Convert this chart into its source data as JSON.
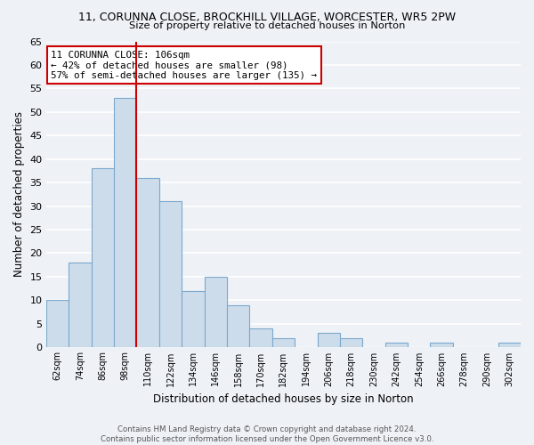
{
  "title": "11, CORUNNA CLOSE, BROCKHILL VILLAGE, WORCESTER, WR5 2PW",
  "subtitle": "Size of property relative to detached houses in Norton",
  "xlabel": "Distribution of detached houses by size in Norton",
  "ylabel": "Number of detached properties",
  "bar_labels": [
    "62sqm",
    "74sqm",
    "86sqm",
    "98sqm",
    "110sqm",
    "122sqm",
    "134sqm",
    "146sqm",
    "158sqm",
    "170sqm",
    "182sqm",
    "194sqm",
    "206sqm",
    "218sqm",
    "230sqm",
    "242sqm",
    "254sqm",
    "266sqm",
    "278sqm",
    "290sqm",
    "302sqm"
  ],
  "bar_values": [
    10,
    18,
    38,
    53,
    36,
    31,
    12,
    15,
    9,
    4,
    2,
    0,
    3,
    2,
    0,
    1,
    0,
    1,
    0,
    0,
    1
  ],
  "bar_color": "#cddceb",
  "bar_edge_color": "#7ba8cc",
  "vline_after_index": 3,
  "vline_color": "#cc0000",
  "annotation_title": "11 CORUNNA CLOSE: 106sqm",
  "annotation_line1": "← 42% of detached houses are smaller (98)",
  "annotation_line2": "57% of semi-detached houses are larger (135) →",
  "annotation_box_color": "#ffffff",
  "annotation_box_edge": "#cc0000",
  "ylim": [
    0,
    65
  ],
  "yticks": [
    0,
    5,
    10,
    15,
    20,
    25,
    30,
    35,
    40,
    45,
    50,
    55,
    60,
    65
  ],
  "footer_line1": "Contains HM Land Registry data © Crown copyright and database right 2024.",
  "footer_line2": "Contains public sector information licensed under the Open Government Licence v3.0.",
  "background_color": "#eef2f7",
  "grid_color": "#ffffff"
}
